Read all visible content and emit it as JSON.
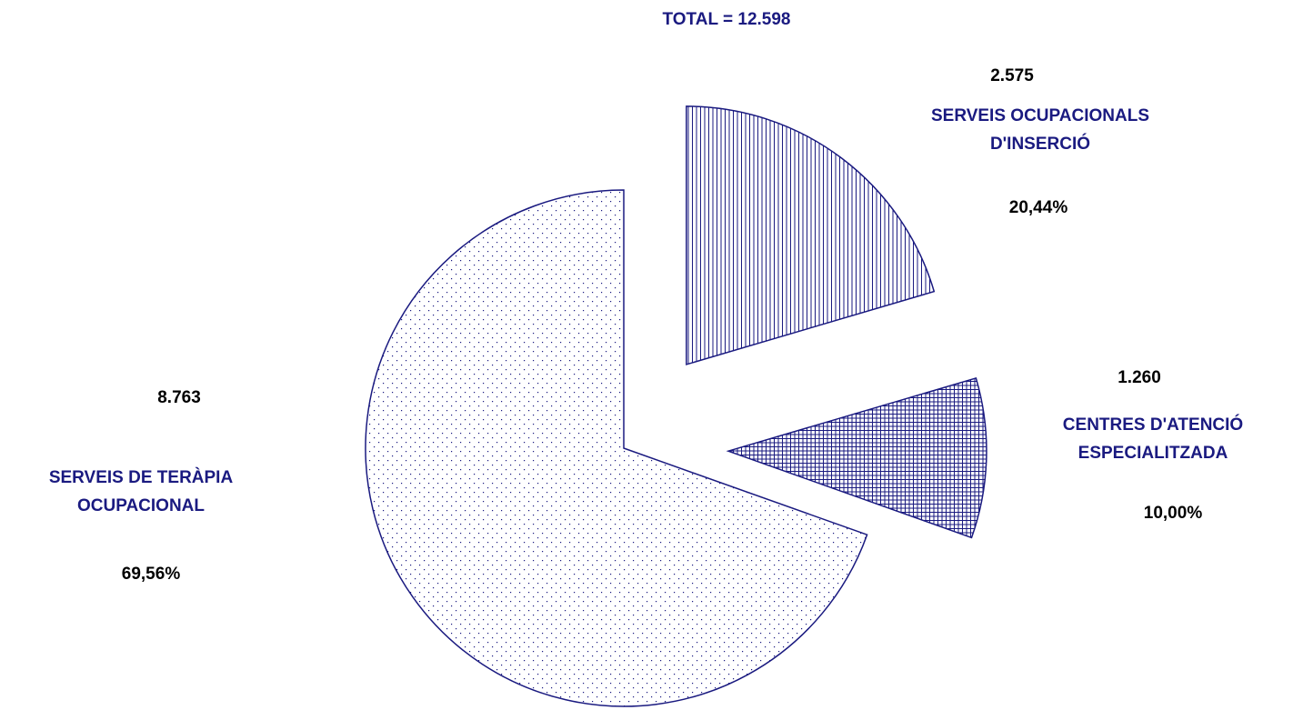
{
  "chart_data": {
    "type": "pie",
    "title": "TOTAL = 12.598",
    "slices": [
      {
        "name_lines": [
          "SERVEIS OCUPACIONALS",
          "D'INSERCIÓ"
        ],
        "value": 2575,
        "value_label": "2.575",
        "percent": 20.44,
        "percent_label": "20,44%",
        "pattern": "vertical-lines",
        "exploded": true
      },
      {
        "name_lines": [
          "CENTRES D'ATENCIÓ",
          "ESPECIALITZADA"
        ],
        "value": 1260,
        "value_label": "1.260",
        "percent": 10.0,
        "percent_label": "10,00%",
        "pattern": "crosshatch",
        "exploded": true
      },
      {
        "name_lines": [
          "SERVEIS DE TERÀPIA",
          "OCUPACIONAL"
        ],
        "value": 8763,
        "value_label": "8.763",
        "percent": 69.56,
        "percent_label": "69,56%",
        "pattern": "dots",
        "exploded": false
      }
    ],
    "start_angle": "12 o'clock",
    "direction": "clockwise",
    "legend": "none",
    "colors": {
      "outline": "#1a1a80",
      "pattern": "#1a1a80",
      "category_text": "#1a1a80",
      "value_text": "#000000"
    }
  }
}
